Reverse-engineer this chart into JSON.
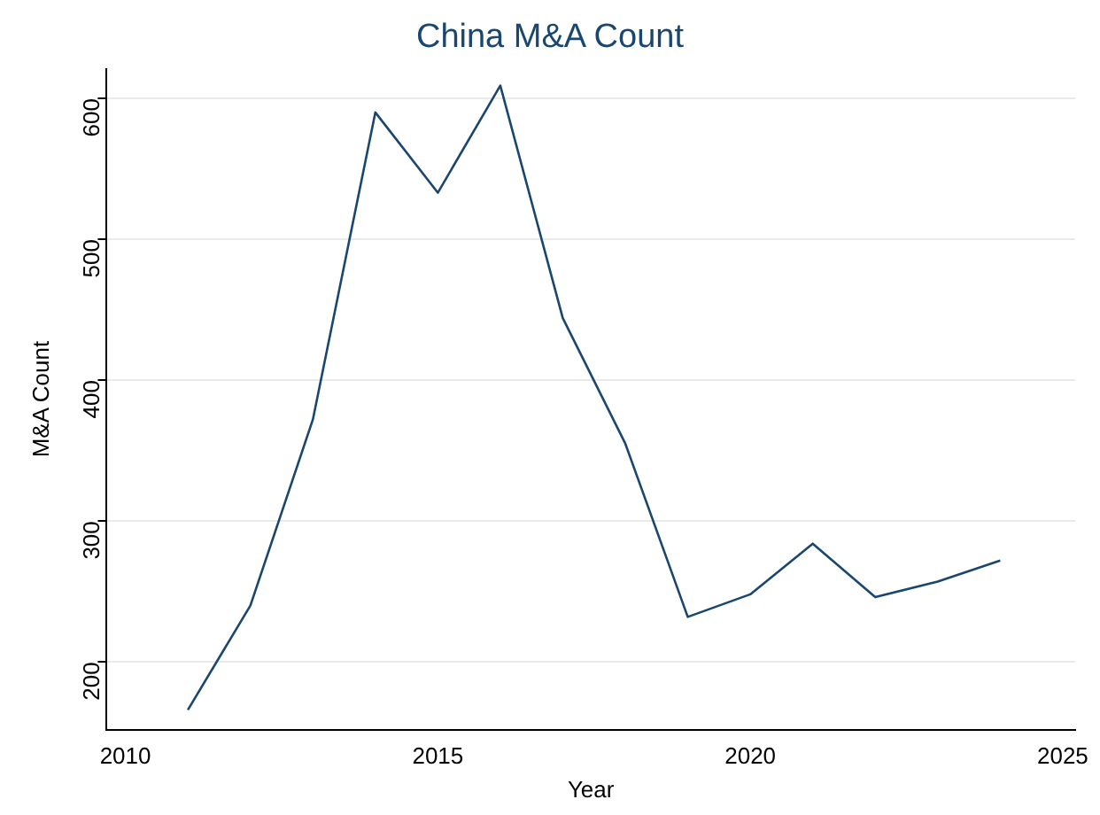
{
  "chart_data": {
    "type": "line",
    "title": "China M&A Count",
    "xlabel": "Year",
    "ylabel": "M&A Count",
    "x": [
      2011,
      2012,
      2013,
      2014,
      2015,
      2016,
      2017,
      2018,
      2019,
      2020,
      2021,
      2022,
      2023,
      2024
    ],
    "series": [
      {
        "color": "#1a476f",
        "values": [
          166,
          240,
          372,
          590,
          533,
          609,
          444,
          355,
          232,
          248,
          284,
          246,
          257,
          272
        ]
      }
    ],
    "xlim": [
      2009.7,
      2025.2
    ],
    "xticks": [
      2010,
      2015,
      2020,
      2025
    ],
    "ylim": [
      152,
      621
    ],
    "yticks": [
      200,
      300,
      400,
      500,
      600
    ],
    "grid": "y",
    "legend": false,
    "marker": "none",
    "line_style": "solid"
  }
}
